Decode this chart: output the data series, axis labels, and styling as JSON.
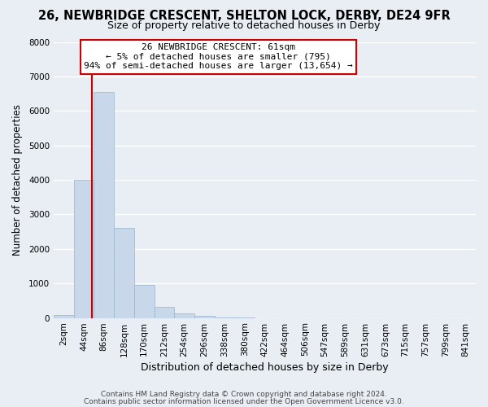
{
  "title": "26, NEWBRIDGE CRESCENT, SHELTON LOCK, DERBY, DE24 9FR",
  "subtitle": "Size of property relative to detached houses in Derby",
  "xlabel": "Distribution of detached houses by size in Derby",
  "ylabel": "Number of detached properties",
  "bar_labels": [
    "2sqm",
    "44sqm",
    "86sqm",
    "128sqm",
    "170sqm",
    "212sqm",
    "254sqm",
    "296sqm",
    "338sqm",
    "380sqm",
    "422sqm",
    "464sqm",
    "506sqm",
    "547sqm",
    "589sqm",
    "631sqm",
    "673sqm",
    "715sqm",
    "757sqm",
    "799sqm",
    "841sqm"
  ],
  "bar_values": [
    75,
    4000,
    6550,
    2600,
    950,
    330,
    120,
    55,
    10,
    5,
    0,
    0,
    0,
    0,
    0,
    0,
    0,
    0,
    0,
    0,
    0
  ],
  "bar_color": "#c8d8ea",
  "bar_edge_color": "#9ab4cc",
  "ylim": [
    0,
    8000
  ],
  "yticks": [
    0,
    1000,
    2000,
    3000,
    4000,
    5000,
    6000,
    7000,
    8000
  ],
  "vline_color": "#cc0000",
  "annotation_text": "26 NEWBRIDGE CRESCENT: 61sqm\n← 5% of detached houses are smaller (795)\n94% of semi-detached houses are larger (13,654) →",
  "annotation_box_facecolor": "#ffffff",
  "annotation_box_edgecolor": "#cc0000",
  "footer_line1": "Contains HM Land Registry data © Crown copyright and database right 2024.",
  "footer_line2": "Contains public sector information licensed under the Open Government Licence v3.0.",
  "background_color": "#e8eef4",
  "grid_color": "#ffffff",
  "title_fontsize": 10.5,
  "subtitle_fontsize": 9,
  "ylabel_fontsize": 8.5,
  "xlabel_fontsize": 9,
  "tick_fontsize": 7.5,
  "annot_fontsize": 8
}
